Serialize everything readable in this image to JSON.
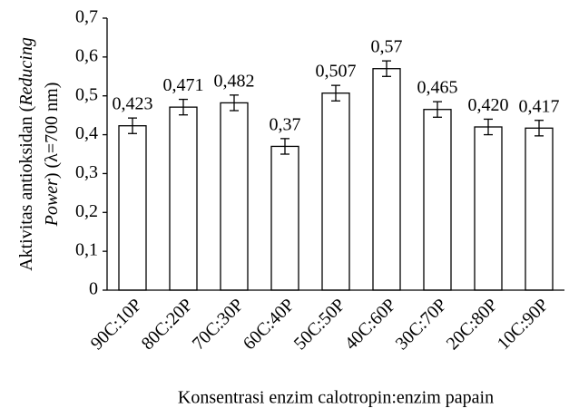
{
  "chart_data": {
    "type": "bar",
    "categories": [
      "90C:10P",
      "80C:20P",
      "70C:30P",
      "60C:40P",
      "50C:50P",
      "40C:60P",
      "30C:70P",
      "20C:80P",
      "10C:90P"
    ],
    "values": [
      0.423,
      0.471,
      0.482,
      0.37,
      0.507,
      0.57,
      0.465,
      0.42,
      0.417
    ],
    "value_labels": [
      "0,423",
      "0,471",
      "0,482",
      "0,37",
      "0,507",
      "0,57",
      "0,465",
      "0,420",
      "0,417"
    ],
    "errors": [
      0.02,
      0.02,
      0.02,
      0.02,
      0.02,
      0.02,
      0.02,
      0.02,
      0.02
    ],
    "color": "#ffffff",
    "ylim": [
      0,
      0.7
    ],
    "yticks": [
      0,
      {
        "value": 0.1,
        "label": "0,1"
      },
      {
        "value": 0.2,
        "label": "0,2"
      },
      {
        "value": 0.3,
        "label": "0,3"
      },
      {
        "value": 0.4,
        "label": "0,4"
      },
      {
        "value": 0.5,
        "label": "0,5"
      },
      {
        "value": 0.6,
        "label": "0,6"
      },
      {
        "value": 0.7,
        "label": "0,7"
      }
    ],
    "ylabel": [
      [
        "Aktivitas antioksidan (",
        "Reducing"
      ],
      [
        "Power",
        ") (λ=700 nm)"
      ]
    ],
    "xlabel": "Konsentrasi enzim calotropin:enzim papain",
    "grid": false
  }
}
